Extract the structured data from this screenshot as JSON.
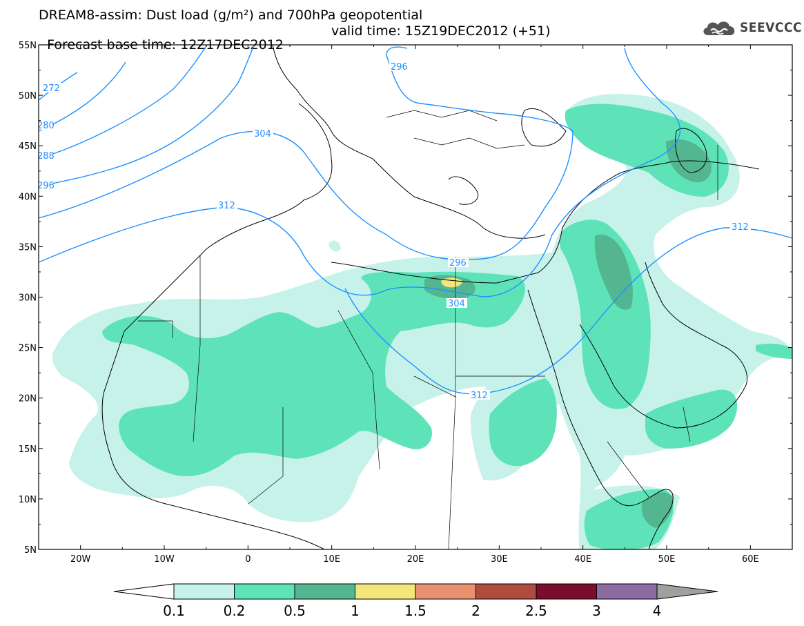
{
  "header": {
    "line1": "DREAM8-assim: Dust load (g/m²) and 700hPa geopotential",
    "line2_left": "Forecast base time: 12Z17DEC2012",
    "line2_right": "valid time: 15Z19DEC2012 (+51)",
    "logo_text": "SEEVCCC",
    "logo_icon": "cloud-icon"
  },
  "map": {
    "lat_labels": [
      "55N",
      "50N",
      "45N",
      "40N",
      "35N",
      "30N",
      "25N",
      "20N",
      "15N",
      "10N",
      "5N"
    ],
    "lon_labels": [
      "20W",
      "10W",
      "0",
      "10E",
      "20E",
      "30E",
      "40E",
      "50E",
      "60E"
    ],
    "extent": {
      "lon": [
        -25,
        65
      ],
      "lat": [
        5,
        55
      ]
    },
    "contour_color": "#1e90ff",
    "contour_labels": [
      "272",
      "280",
      "288",
      "296",
      "304",
      "312",
      "296",
      "296",
      "304",
      "312",
      "312"
    ]
  },
  "colorbar": {
    "ticks": [
      "0.1",
      "0.2",
      "0.5",
      "1",
      "1.5",
      "2",
      "2.5",
      "3",
      "4"
    ],
    "colors": [
      "#c6f2ea",
      "#5ee3b8",
      "#54b690",
      "#f3e67a",
      "#e99070",
      "#ae4c3e",
      "#7a0d2e",
      "#8d6aa2",
      "#a0a0a0"
    ]
  }
}
